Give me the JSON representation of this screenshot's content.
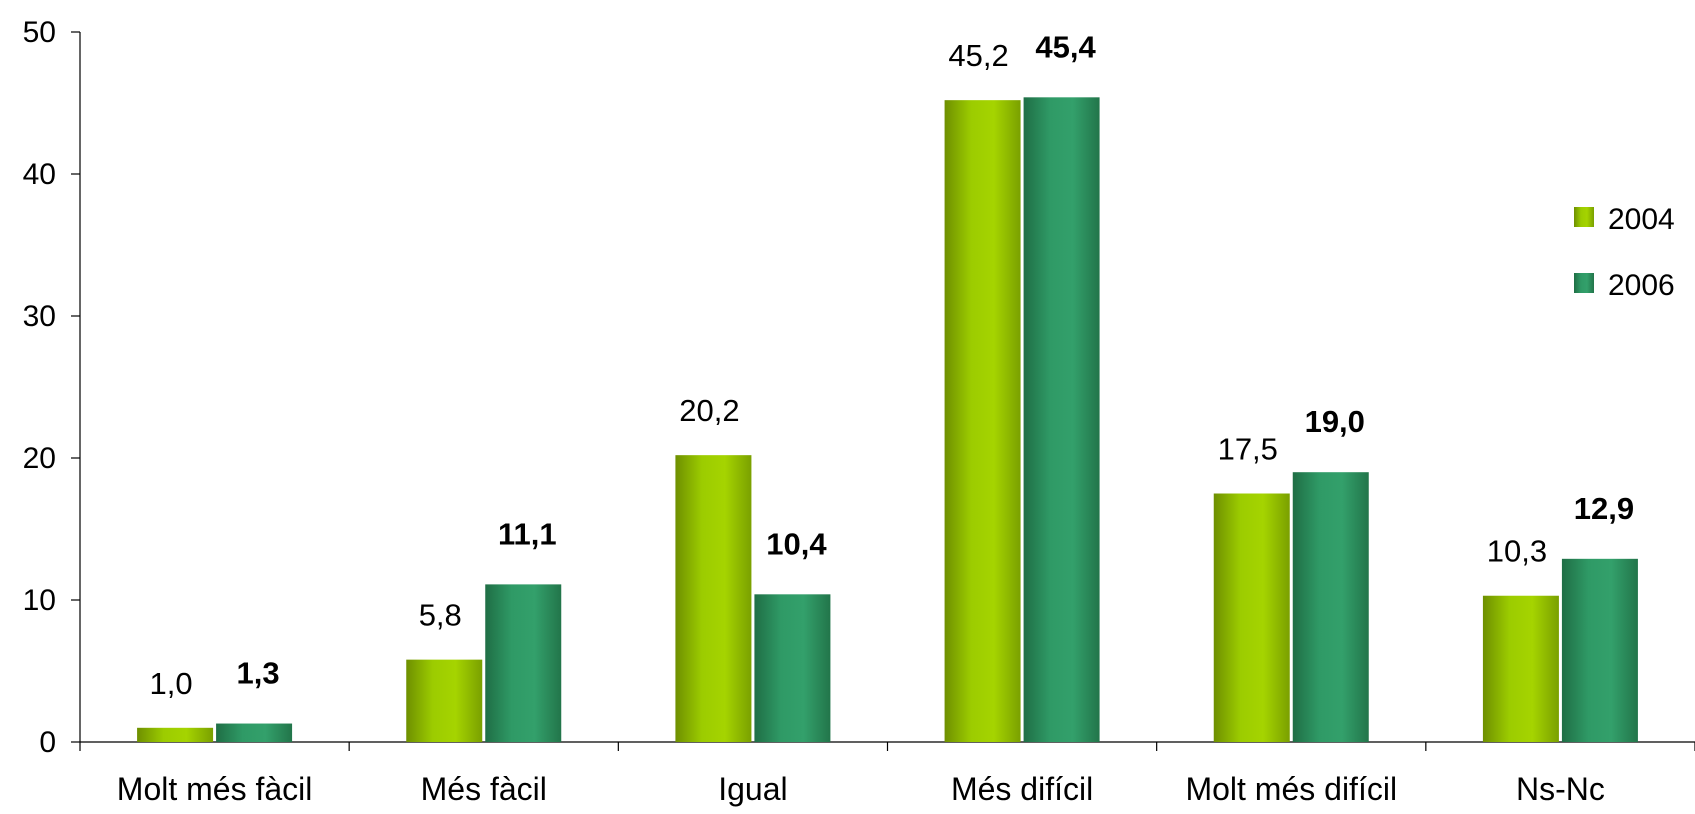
{
  "chart_data": {
    "type": "bar",
    "categories": [
      "Molt més fàcil",
      "Més fàcil",
      "Igual",
      "Més difícil",
      "Molt més difícil",
      "Ns-Nc"
    ],
    "series": [
      {
        "name": "2004",
        "values": [
          1.0,
          5.8,
          20.2,
          45.2,
          17.5,
          10.3
        ],
        "labels": [
          "1,0",
          "5,8",
          "20,2",
          "45,2",
          "17,5",
          "10,3"
        ],
        "color": "#8db600"
      },
      {
        "name": "2006",
        "values": [
          1.3,
          11.1,
          10.4,
          45.4,
          19.0,
          12.9
        ],
        "labels": [
          "1,3",
          "11,1",
          "10,4",
          "45,4",
          "19,0",
          "12,9"
        ],
        "color": "#2e8b57"
      }
    ],
    "yticks": [
      "0",
      "10",
      "20",
      "30",
      "40",
      "50"
    ],
    "ylim": [
      0,
      50
    ],
    "title": "",
    "xlabel": "",
    "ylabel": "",
    "grid": false,
    "legend": "right"
  }
}
